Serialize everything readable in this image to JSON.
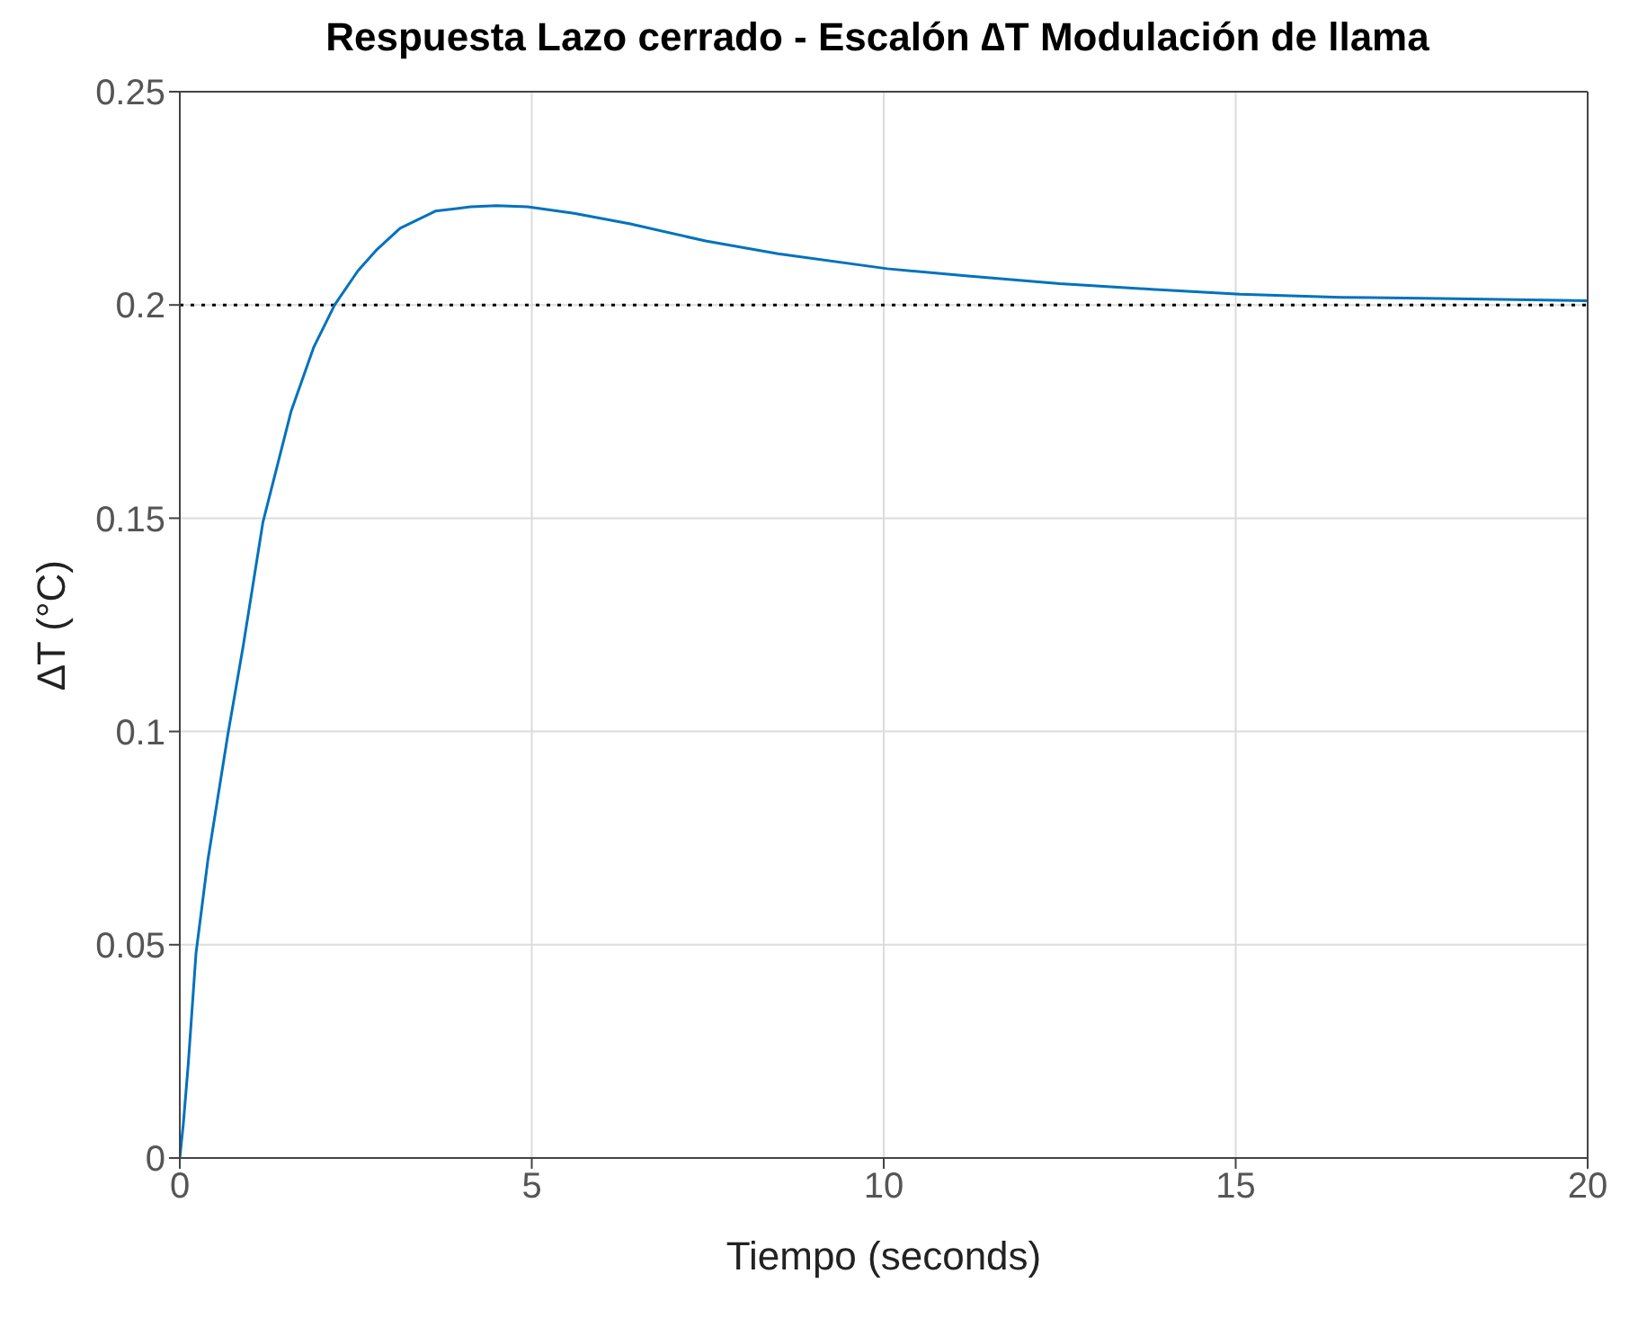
{
  "chart_data": {
    "type": "line",
    "title": "Respuesta Lazo cerrado - Escalón ∆T Modulación de llama",
    "xlabel": "Tiempo (seconds)",
    "ylabel": "∆T (°C)",
    "x": [
      0,
      0.05,
      0.12,
      0.23,
      0.4,
      0.68,
      0.9,
      1.18,
      1.58,
      1.9,
      2.2,
      2.53,
      2.8,
      3.13,
      3.63,
      4.13,
      4.5,
      4.94,
      5.6,
      6.4,
      7.47,
      8.5,
      10.05,
      11.2,
      12.5,
      13.8,
      15.06,
      16.5,
      17.9,
      20
    ],
    "series": [
      {
        "color": "#0072bd",
        "values": [
          0,
          0.008,
          0.022,
          0.048,
          0.07,
          0.099,
          0.12,
          0.149,
          0.175,
          0.19,
          0.2,
          0.208,
          0.213,
          0.218,
          0.222,
          0.223,
          0.2233,
          0.223,
          0.2215,
          0.219,
          0.215,
          0.212,
          0.2085,
          0.2068,
          0.205,
          0.2037,
          0.2025,
          0.2018,
          0.2015,
          0.201
        ]
      }
    ],
    "xlim": [
      0,
      20
    ],
    "xticks": [
      0,
      5,
      10,
      15,
      20
    ],
    "ylim": [
      0,
      0.25
    ],
    "yticks": [
      0,
      0.05,
      0.1,
      0.15,
      0.2,
      0.25
    ],
    "grid": true,
    "marker": "none",
    "line_style": "solid",
    "ref_lines": [
      {
        "axis": "y",
        "value": 0.2,
        "color": "#000000",
        "line_style": "dotted"
      }
    ]
  }
}
